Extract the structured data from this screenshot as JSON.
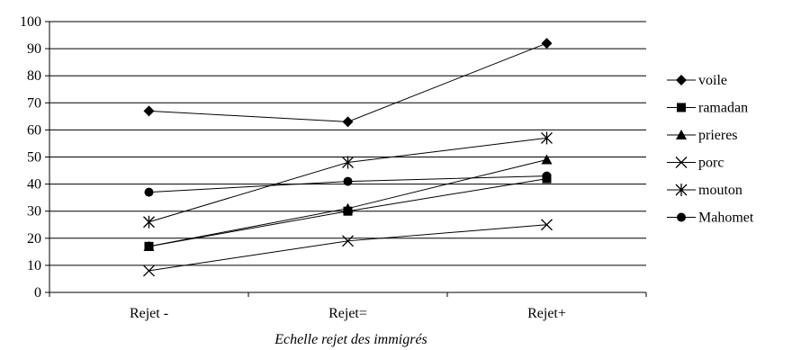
{
  "chart_data": {
    "type": "line",
    "categories": [
      "Rejet -",
      "Rejet=",
      "Rejet+"
    ],
    "series": [
      {
        "name": "voile",
        "marker": "diamond",
        "values": [
          67,
          63,
          92
        ]
      },
      {
        "name": "ramadan",
        "marker": "square",
        "values": [
          17,
          30,
          42
        ]
      },
      {
        "name": "prieres",
        "marker": "triangle",
        "values": [
          17,
          31,
          49
        ]
      },
      {
        "name": "porc",
        "marker": "x",
        "values": [
          8,
          19,
          25
        ]
      },
      {
        "name": "mouton",
        "marker": "star",
        "values": [
          26,
          48,
          57
        ]
      },
      {
        "name": "Mahomet",
        "marker": "circle",
        "values": [
          37,
          41,
          43
        ]
      }
    ],
    "title": "",
    "xlabel": "Echelle rejet des immigrés",
    "ylabel": "",
    "ylim": [
      0,
      100
    ],
    "yticks": [
      0,
      10,
      20,
      30,
      40,
      50,
      60,
      70,
      80,
      90,
      100
    ],
    "grid": true,
    "legend_position": "right",
    "line_color": "#000000"
  }
}
